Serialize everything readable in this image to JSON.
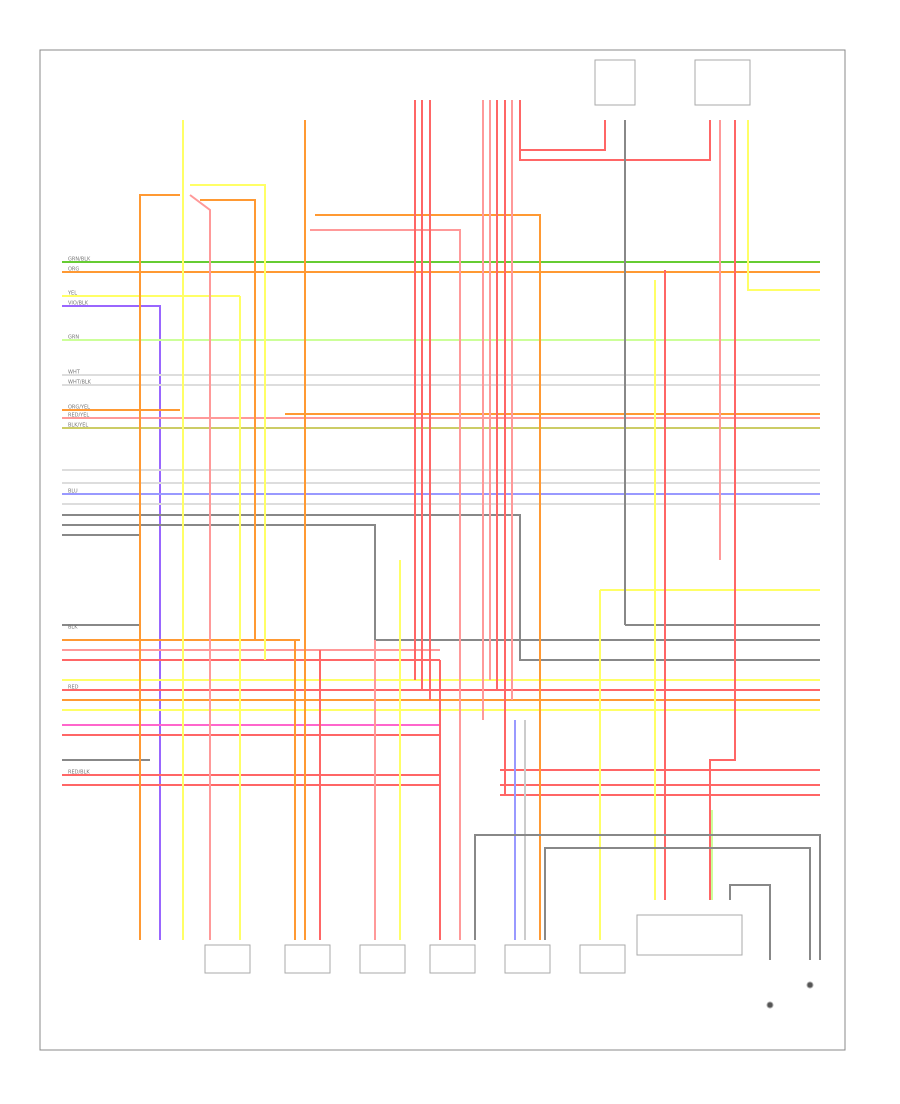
{
  "wires": [
    {
      "label": "GRN/BLK"
    },
    {
      "label": "ORG"
    },
    {
      "label": "YEL"
    },
    {
      "label": "VIO/BLK"
    },
    {
      "label": "GRN"
    },
    {
      "label": "WHT"
    },
    {
      "label": "WHT/BLK"
    },
    {
      "label": "ORG/YEL"
    },
    {
      "label": "RED/YEL"
    },
    {
      "label": "BLK/YEL"
    },
    {
      "label": "BLU"
    },
    {
      "label": "BLK"
    },
    {
      "label": "RED"
    },
    {
      "label": "RED/BLK"
    }
  ]
}
